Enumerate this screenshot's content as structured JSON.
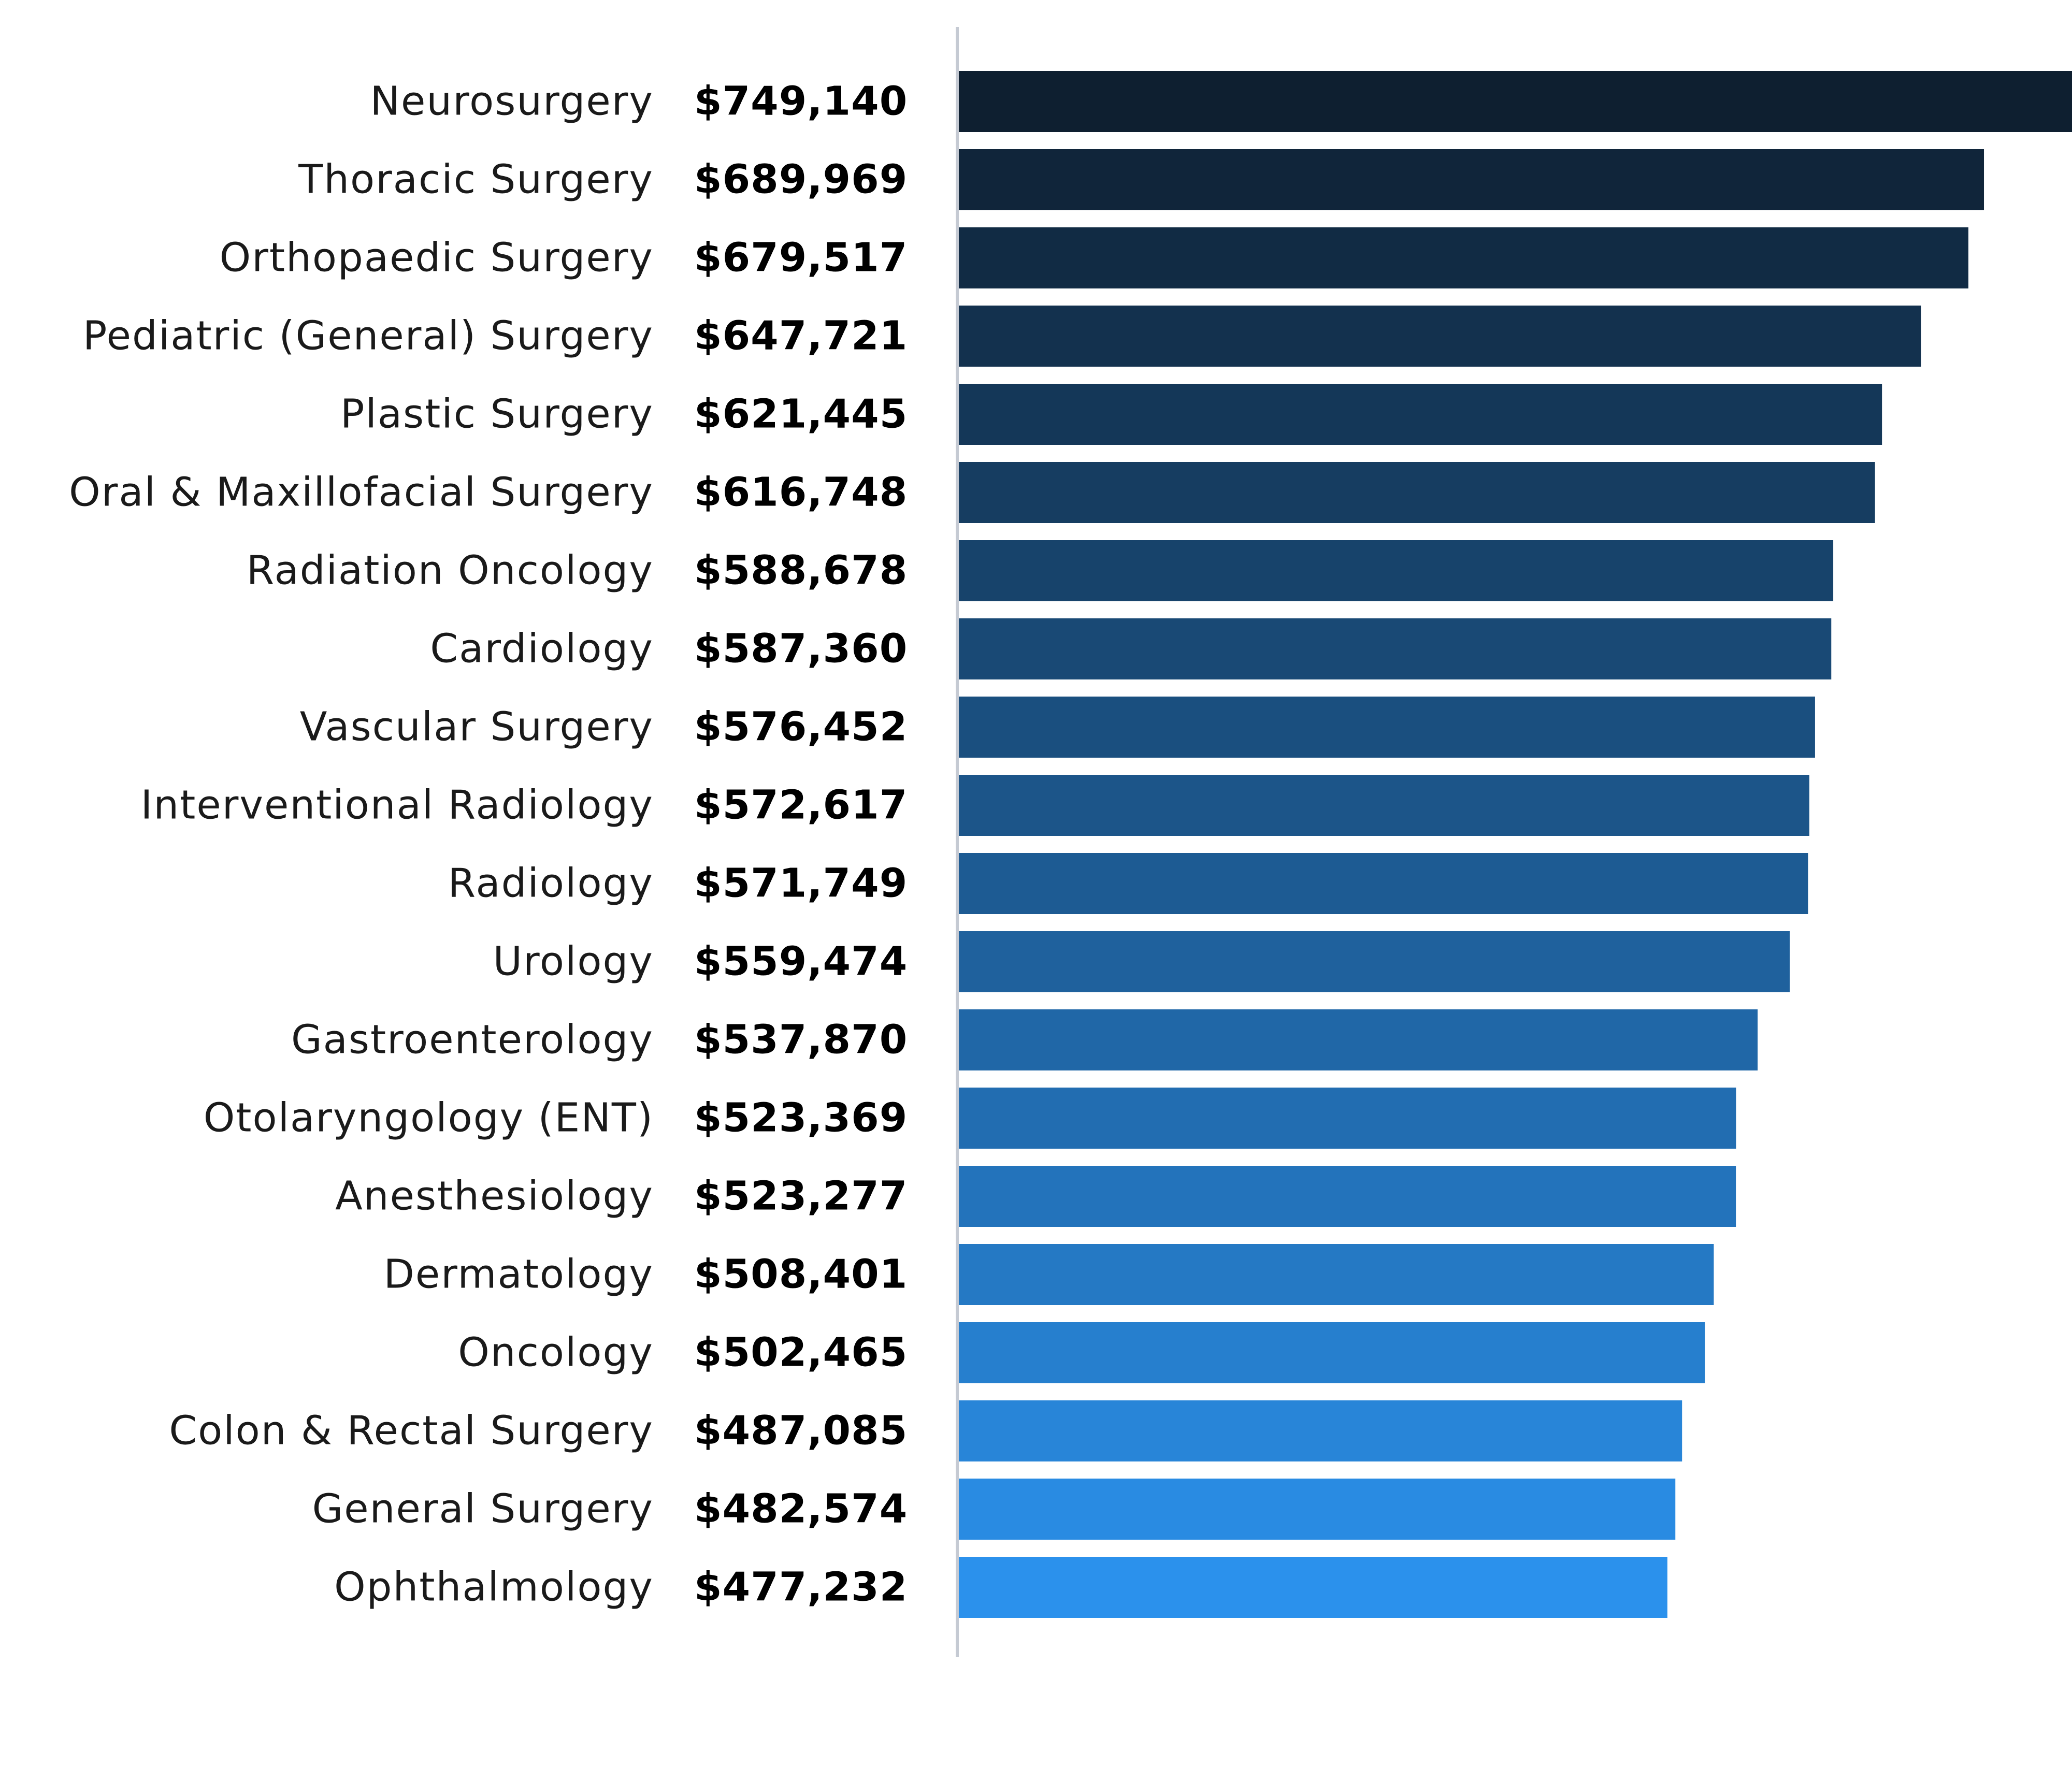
{
  "chart_data": {
    "type": "bar",
    "orientation": "horizontal",
    "title": "",
    "xlabel": "",
    "ylabel": "",
    "grid": false,
    "legend": "none",
    "categories": [
      "Neurosurgery",
      "Thoracic Surgery",
      "Orthopaedic Surgery",
      "Pediatric (General) Surgery",
      "Plastic Surgery",
      "Oral & Maxillofacial Surgery",
      "Radiation Oncology",
      "Cardiology",
      "Vascular Surgery",
      "Interventional Radiology",
      "Radiology",
      "Urology",
      "Gastroenterology",
      "Otolaryngology (ENT)",
      "Anesthesiology",
      "Dermatology",
      "Oncology",
      "Colon & Rectal Surgery",
      "General Surgery",
      "Ophthalmology"
    ],
    "values": [
      749140,
      689969,
      679517,
      647721,
      621445,
      616748,
      588678,
      587360,
      576452,
      572617,
      571749,
      559474,
      537870,
      523369,
      523277,
      508401,
      502465,
      487085,
      482574,
      477232
    ],
    "value_labels": [
      "$749,140",
      "$689,969",
      "$679,517",
      "$647,721",
      "$621,445",
      "$616,748",
      "$588,678",
      "$587,360",
      "$576,452",
      "$572,617",
      "$571,749",
      "$559,474",
      "$537,870",
      "$523,369",
      "$523,277",
      "$508,401",
      "$502,465",
      "$487,085",
      "$482,574",
      "$477,232"
    ],
    "xlim": [
      0,
      749140
    ],
    "colors": {
      "bar_start": "#0e1f30",
      "bar_end": "#2b91ec",
      "axis_line": "#c5cad3",
      "category_text": "#1a1a1a",
      "value_text": "#000000"
    }
  }
}
